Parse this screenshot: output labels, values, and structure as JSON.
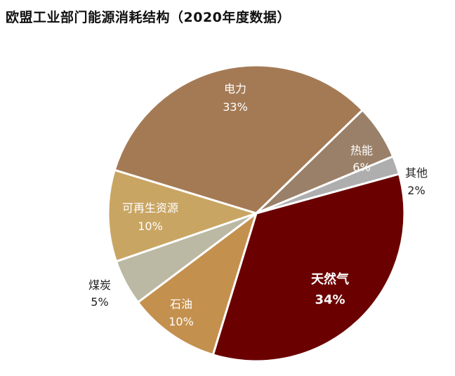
{
  "chart_data": {
    "type": "pie",
    "title": "欧盟工业部门能源消耗结构（2020年度数据）",
    "slices": [
      {
        "label": "天然气",
        "pct_label": "34%",
        "value": 34,
        "color": "#6b0000"
      },
      {
        "label": "石油",
        "pct_label": "10%",
        "value": 10,
        "color": "#c4904e"
      },
      {
        "label": "煤炭",
        "pct_label": "5%",
        "value": 5,
        "color": "#bbb8a3"
      },
      {
        "label": "可再生资源",
        "pct_label": "10%",
        "value": 10,
        "color": "#c9a563"
      },
      {
        "label": "电力",
        "pct_label": "33%",
        "value": 33,
        "color": "#a47a55"
      },
      {
        "label": "热能",
        "pct_label": "6%",
        "value": 6,
        "color": "#9a8068"
      },
      {
        "label": "其他",
        "pct_label": "2%",
        "value": 2,
        "color": "#aeaeae"
      }
    ],
    "legend": "none"
  }
}
